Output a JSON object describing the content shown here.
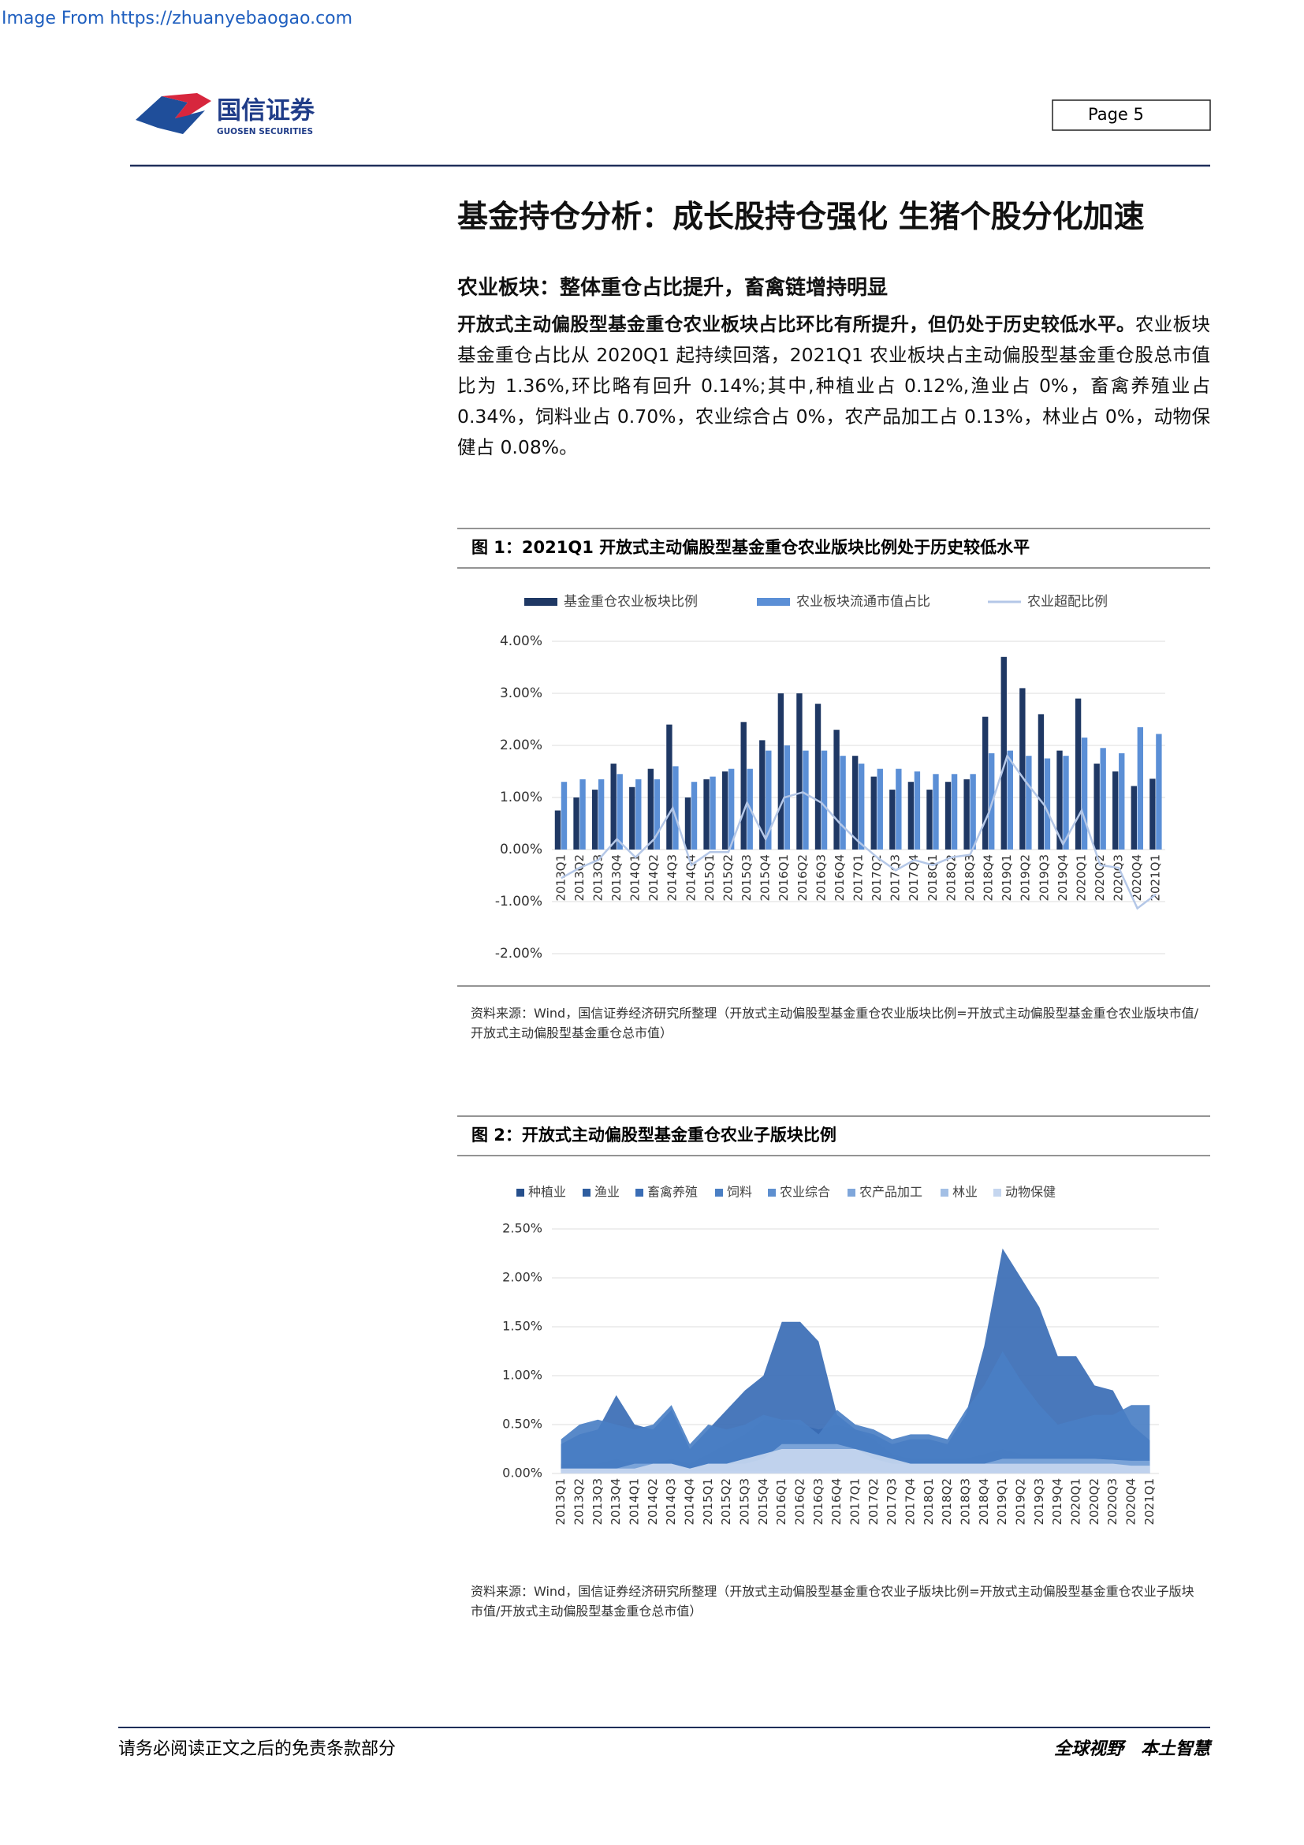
{
  "watermark": "Image From https://zhuanyebaogao.com",
  "header": {
    "logo_name": "国信证券",
    "logo_subtitle": "GUOSEN SECURITIES",
    "page": "Page 5"
  },
  "section_title": "基金持仓分析：成长股持仓强化 生猪个股分化加速",
  "subheading": "农业板块：整体重仓占比提升，畜禽链增持明显",
  "paragraph": {
    "lead": "开放式主动偏股型基金重仓农业板块占比环比有所提升，但仍处于历史较低水平。",
    "body": "农业板块基金重仓占比从 2020Q1 起持续回落，2021Q1 农业板块占主动偏股型基金重仓股总市值比为 1.36%,环比略有回升 0.14%;其中,种植业占 0.12%,渔业占 0%，畜禽养殖业占 0.34%，饲料业占 0.70%，农业综合占 0%，农产品加工占 0.13%，林业占 0%，动物保健占 0.08%。"
  },
  "figures": [
    {
      "title": "图 1：2021Q1 开放式主动偏股型基金重仓农业版块比例处于历史较低水平",
      "source": "资料来源：Wind，国信证券经济研究所整理（开放式主动偏股型基金重仓农业版块比例=开放式主动偏股型基金重仓农业版块市值/开放式主动偏股型基金重仓总市值）"
    },
    {
      "title": "图 2：开放式主动偏股型基金重仓农业子版块比例",
      "source": "资料来源：Wind，国信证券经济研究所整理（开放式主动偏股型基金重仓农业子版块比例=开放式主动偏股型基金重仓农业子版块市值/开放式主动偏股型基金重仓总市值）"
    }
  ],
  "footer": {
    "left": "请务必阅读正文之后的免责条款部分",
    "right": "全球视野　本土智慧"
  },
  "chart_data": [
    {
      "type": "bar",
      "categories": [
        "2013Q1",
        "2013Q2",
        "2013Q3",
        "2013Q4",
        "2014Q1",
        "2014Q2",
        "2014Q3",
        "2014Q4",
        "2015Q1",
        "2015Q2",
        "2015Q3",
        "2015Q4",
        "2016Q1",
        "2016Q2",
        "2016Q3",
        "2016Q4",
        "2017Q1",
        "2017Q2",
        "2017Q3",
        "2017Q4",
        "2018Q1",
        "2018Q2",
        "2018Q3",
        "2018Q4",
        "2019Q1",
        "2019Q2",
        "2019Q3",
        "2019Q4",
        "2020Q1",
        "2020Q2",
        "2020Q3",
        "2020Q4",
        "2021Q1"
      ],
      "series": [
        {
          "name": "基金重仓农业板块比例",
          "color": "#1f3864",
          "values": [
            0.75,
            1.0,
            1.15,
            1.65,
            1.2,
            1.55,
            2.4,
            1.0,
            1.35,
            1.5,
            2.45,
            2.1,
            3.0,
            3.0,
            2.8,
            2.3,
            1.8,
            1.4,
            1.15,
            1.3,
            1.15,
            1.3,
            1.35,
            2.55,
            3.7,
            3.1,
            2.6,
            1.9,
            2.9,
            1.65,
            1.5,
            1.22,
            1.36
          ]
        },
        {
          "name": "农业板块流通市值占比",
          "color": "#5b8fd6",
          "values": [
            1.3,
            1.35,
            1.35,
            1.45,
            1.35,
            1.35,
            1.6,
            1.3,
            1.4,
            1.55,
            1.55,
            1.9,
            2.0,
            1.9,
            1.9,
            1.8,
            1.65,
            1.55,
            1.55,
            1.5,
            1.45,
            1.45,
            1.45,
            1.85,
            1.9,
            1.8,
            1.75,
            1.8,
            2.15,
            1.95,
            1.85,
            2.35,
            2.22
          ]
        },
        {
          "name": "农业超配比例",
          "color": "#b4c7e7",
          "type": "line",
          "values": [
            -0.55,
            -0.35,
            -0.2,
            0.2,
            -0.15,
            0.2,
            0.8,
            -0.3,
            -0.05,
            -0.05,
            0.9,
            0.2,
            1.0,
            1.1,
            0.9,
            0.5,
            0.15,
            -0.15,
            -0.4,
            -0.2,
            -0.3,
            -0.15,
            -0.1,
            0.7,
            1.8,
            1.3,
            0.85,
            0.1,
            0.75,
            -0.3,
            -0.35,
            -1.13,
            -0.86
          ]
        }
      ],
      "ylim": [
        -2,
        4
      ],
      "yticks": [
        {
          "value": 4,
          "label": "4.00%"
        },
        {
          "value": 3,
          "label": "3.00%"
        },
        {
          "value": 2,
          "label": "2.00%"
        },
        {
          "value": 1,
          "label": "1.00%"
        },
        {
          "value": 0,
          "label": "0.00%"
        },
        {
          "value": -1,
          "label": "-1.00%"
        },
        {
          "value": -2,
          "label": "-2.00%"
        }
      ],
      "grid": true,
      "legend": "top"
    },
    {
      "type": "area",
      "categories": [
        "2013Q1",
        "2013Q2",
        "2013Q3",
        "2013Q4",
        "2014Q1",
        "2014Q2",
        "2014Q3",
        "2014Q4",
        "2015Q1",
        "2015Q2",
        "2015Q3",
        "2015Q4",
        "2016Q1",
        "2016Q2",
        "2016Q3",
        "2016Q4",
        "2017Q1",
        "2017Q2",
        "2017Q3",
        "2017Q4",
        "2018Q1",
        "2018Q2",
        "2018Q3",
        "2018Q4",
        "2019Q1",
        "2019Q2",
        "2019Q3",
        "2019Q4",
        "2020Q1",
        "2020Q2",
        "2020Q3",
        "2020Q4",
        "2021Q1"
      ],
      "series": [
        {
          "name": "种植业",
          "color": "#264f8c",
          "values": [
            0.1,
            0.1,
            0.1,
            0.15,
            0.1,
            0.1,
            0.15,
            0.1,
            0.2,
            0.3,
            0.4,
            0.55,
            0.55,
            0.5,
            0.45,
            0.5,
            0.45,
            0.35,
            0.2,
            0.15,
            0.15,
            0.15,
            0.15,
            0.2,
            0.25,
            0.2,
            0.2,
            0.2,
            0.2,
            0.2,
            0.18,
            0.15,
            0.12
          ]
        },
        {
          "name": "渔业",
          "color": "#2e5d9f",
          "values": [
            0.05,
            0.05,
            0.05,
            0.05,
            0.05,
            0.05,
            0.05,
            0.03,
            0.03,
            0.03,
            0.05,
            0.05,
            0.05,
            0.05,
            0.05,
            0.03,
            0.03,
            0.03,
            0.02,
            0.02,
            0.02,
            0.02,
            0.02,
            0.02,
            0.02,
            0.02,
            0.02,
            0.02,
            0.01,
            0.01,
            0.01,
            0.0,
            0.0
          ]
        },
        {
          "name": "畜禽养殖",
          "color": "#3a6db5",
          "values": [
            0.3,
            0.4,
            0.45,
            0.8,
            0.5,
            0.45,
            0.65,
            0.25,
            0.45,
            0.65,
            0.85,
            1.0,
            1.55,
            1.55,
            1.35,
            0.6,
            0.45,
            0.4,
            0.3,
            0.35,
            0.35,
            0.3,
            0.6,
            1.3,
            2.3,
            2.0,
            1.7,
            1.2,
            1.2,
            0.9,
            0.85,
            0.5,
            0.34
          ]
        },
        {
          "name": "饲料",
          "color": "#4a7fc4",
          "values": [
            0.35,
            0.5,
            0.55,
            0.5,
            0.45,
            0.5,
            0.7,
            0.3,
            0.5,
            0.45,
            0.5,
            0.6,
            0.55,
            0.55,
            0.4,
            0.65,
            0.5,
            0.45,
            0.35,
            0.4,
            0.4,
            0.35,
            0.65,
            0.9,
            1.25,
            0.95,
            0.7,
            0.5,
            0.55,
            0.6,
            0.6,
            0.7,
            0.7
          ]
        },
        {
          "name": "农业综合",
          "color": "#5e8fcf",
          "values": [
            0.03,
            0.03,
            0.03,
            0.03,
            0.03,
            0.03,
            0.03,
            0.02,
            0.02,
            0.02,
            0.03,
            0.03,
            0.03,
            0.03,
            0.03,
            0.02,
            0.02,
            0.02,
            0.02,
            0.02,
            0.02,
            0.02,
            0.02,
            0.02,
            0.02,
            0.02,
            0.01,
            0.01,
            0.01,
            0.01,
            0.0,
            0.0,
            0.0
          ]
        },
        {
          "name": "农产品加工",
          "color": "#7fa6da",
          "values": [
            0.05,
            0.05,
            0.05,
            0.05,
            0.1,
            0.1,
            0.1,
            0.05,
            0.1,
            0.1,
            0.1,
            0.15,
            0.3,
            0.3,
            0.3,
            0.3,
            0.25,
            0.15,
            0.1,
            0.1,
            0.1,
            0.1,
            0.1,
            0.1,
            0.15,
            0.15,
            0.15,
            0.15,
            0.15,
            0.15,
            0.14,
            0.13,
            0.13
          ]
        },
        {
          "name": "林业",
          "color": "#a3bfe5",
          "values": [
            0.02,
            0.02,
            0.02,
            0.02,
            0.02,
            0.02,
            0.02,
            0.02,
            0.02,
            0.02,
            0.02,
            0.02,
            0.02,
            0.02,
            0.02,
            0.02,
            0.02,
            0.02,
            0.01,
            0.01,
            0.01,
            0.01,
            0.01,
            0.01,
            0.01,
            0.01,
            0.01,
            0.01,
            0.01,
            0.01,
            0.0,
            0.0,
            0.0
          ]
        },
        {
          "name": "动物保健",
          "color": "#c5d6ef",
          "values": [
            0.05,
            0.05,
            0.05,
            0.05,
            0.05,
            0.1,
            0.1,
            0.05,
            0.1,
            0.1,
            0.15,
            0.2,
            0.25,
            0.25,
            0.25,
            0.25,
            0.25,
            0.2,
            0.15,
            0.1,
            0.1,
            0.1,
            0.1,
            0.1,
            0.1,
            0.1,
            0.1,
            0.1,
            0.1,
            0.1,
            0.1,
            0.08,
            0.08
          ]
        }
      ],
      "ylim": [
        0,
        2.5
      ],
      "yticks": [
        {
          "value": 2.5,
          "label": "2.50%"
        },
        {
          "value": 2,
          "label": "2.00%"
        },
        {
          "value": 1.5,
          "label": "1.50%"
        },
        {
          "value": 1,
          "label": "1.00%"
        },
        {
          "value": 0.5,
          "label": "0.50%"
        },
        {
          "value": 0,
          "label": "0.00%"
        }
      ],
      "grid": true,
      "legend": "top"
    }
  ]
}
